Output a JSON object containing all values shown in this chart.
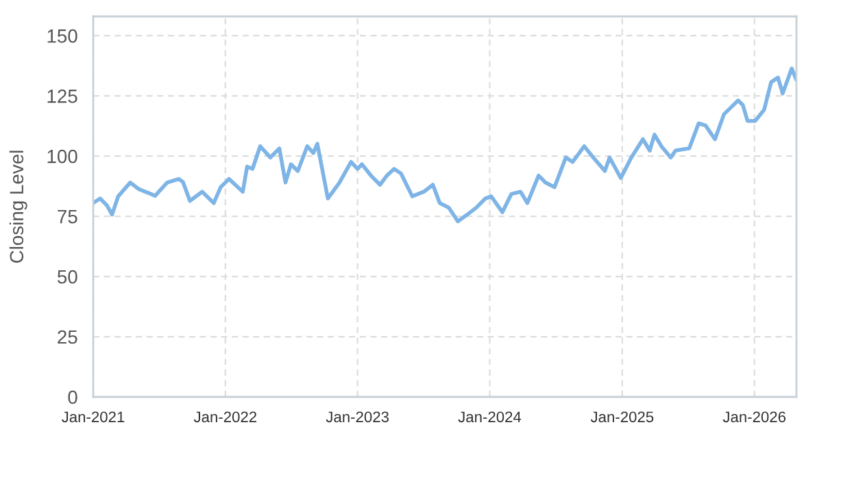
{
  "chart_data": {
    "type": "line",
    "ylabel": "Closing Level",
    "xlim": [
      "2021-01-01",
      "2026-04-27"
    ],
    "ylim": [
      0,
      158
    ],
    "yticks": [
      0,
      25,
      50,
      75,
      100,
      125,
      150
    ],
    "xticks": [
      {
        "value": "2021-01-01",
        "label": "Jan-2021"
      },
      {
        "value": "2022-01-01",
        "label": "Jan-2022"
      },
      {
        "value": "2023-01-01",
        "label": "Jan-2023"
      },
      {
        "value": "2024-01-01",
        "label": "Jan-2024"
      },
      {
        "value": "2025-01-01",
        "label": "Jan-2025"
      },
      {
        "value": "2026-01-01",
        "label": "Jan-2026"
      }
    ],
    "grid": true,
    "marker": "none",
    "line_style": "solid",
    "series": [
      {
        "color": "#7eb4e6",
        "x": [
          "2021-01-01",
          "2021-01-20",
          "2021-02-08",
          "2021-02-22",
          "2021-03-11",
          "2021-04-13",
          "2021-05-08",
          "2021-06-09",
          "2021-06-21",
          "2021-07-24",
          "2021-08-25",
          "2021-09-06",
          "2021-09-25",
          "2021-10-29",
          "2021-11-30",
          "2021-12-19",
          "2022-01-11",
          "2022-02-18",
          "2022-03-02",
          "2022-03-17",
          "2022-04-07",
          "2022-05-05",
          "2022-05-30",
          "2022-06-16",
          "2022-07-01",
          "2022-07-20",
          "2022-08-15",
          "2022-09-01",
          "2022-09-12",
          "2022-10-05",
          "2022-10-11",
          "2022-11-12",
          "2022-12-14",
          "2023-01-01",
          "2023-01-13",
          "2023-02-07",
          "2023-03-04",
          "2023-03-23",
          "2023-04-12",
          "2023-05-01",
          "2023-06-01",
          "2023-07-03",
          "2023-07-28",
          "2023-08-16",
          "2023-09-10",
          "2023-10-05",
          "2023-10-31",
          "2023-11-25",
          "2023-12-20",
          "2024-01-05",
          "2024-02-05",
          "2024-03-01",
          "2024-03-26",
          "2024-04-14",
          "2024-05-15",
          "2024-06-03",
          "2024-06-28",
          "2024-07-29",
          "2024-08-17",
          "2024-09-18",
          "2024-10-13",
          "2024-11-14",
          "2024-11-27",
          "2024-12-28",
          "2025-01-26",
          "2025-02-27",
          "2025-03-18",
          "2025-03-31",
          "2025-04-19",
          "2025-05-15",
          "2025-05-28",
          "2025-07-05",
          "2025-07-31",
          "2025-08-19",
          "2025-09-14",
          "2025-10-09",
          "2025-11-17",
          "2025-11-30",
          "2025-12-13",
          "2026-01-03",
          "2026-01-28",
          "2026-02-16",
          "2026-03-07",
          "2026-03-20",
          "2026-04-14",
          "2026-04-27"
        ],
        "values": [
          80.5,
          82.4,
          79.5,
          75.7,
          83.3,
          89.0,
          86.2,
          84.3,
          83.5,
          89.0,
          90.5,
          89.2,
          81.4,
          85.2,
          80.5,
          87.1,
          90.5,
          85.2,
          95.6,
          94.7,
          104.1,
          99.4,
          103.2,
          89.0,
          96.6,
          93.8,
          104.1,
          101.3,
          105.1,
          87.1,
          82.4,
          89.0,
          97.6,
          94.7,
          96.6,
          91.9,
          88.1,
          91.9,
          94.7,
          92.8,
          83.3,
          85.2,
          88.1,
          80.5,
          78.6,
          72.9,
          75.7,
          78.6,
          82.4,
          83.3,
          76.7,
          84.3,
          85.2,
          80.5,
          91.9,
          89.0,
          87.1,
          99.4,
          97.6,
          104.1,
          99.4,
          93.8,
          99.4,
          90.9,
          99.4,
          107.0,
          102.3,
          108.9,
          104.1,
          99.4,
          102.3,
          103.2,
          113.6,
          112.7,
          107.0,
          117.4,
          123.1,
          121.2,
          114.6,
          114.6,
          119.3,
          130.7,
          132.6,
          126.0,
          136.4,
          131.6
        ]
      }
    ]
  }
}
